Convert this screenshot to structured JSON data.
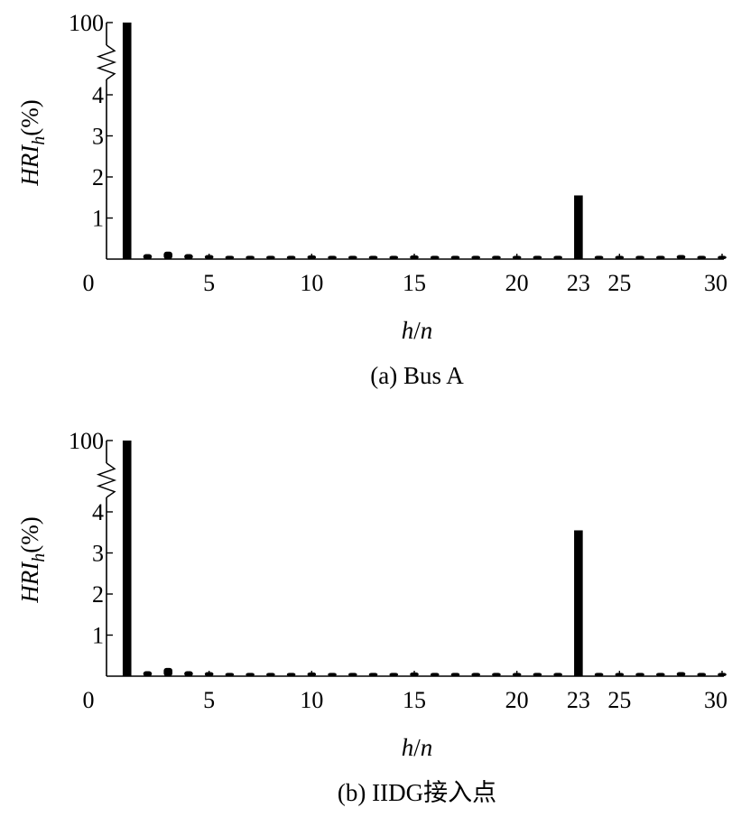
{
  "chart_data": [
    {
      "type": "bar",
      "caption": "(a) Bus A",
      "xlabel": "h/n",
      "ylabel": "HRI_h(%)",
      "xticks": [
        "0",
        "5",
        "10",
        "15",
        "20",
        "23",
        "25",
        "30"
      ],
      "xtick_values": [
        0,
        5,
        10,
        15,
        20,
        23,
        25,
        30
      ],
      "yticks": [
        "1",
        "2",
        "3",
        "4",
        "100"
      ],
      "ytick_values": [
        1,
        2,
        3,
        4,
        100
      ],
      "y_axis_break": {
        "from": 4,
        "to": 100
      },
      "xlim": [
        0,
        30
      ],
      "ylim": [
        0,
        100
      ],
      "categories": [
        1,
        2,
        3,
        4,
        5,
        6,
        7,
        8,
        9,
        10,
        11,
        12,
        13,
        14,
        15,
        16,
        17,
        18,
        19,
        20,
        21,
        22,
        23,
        24,
        25,
        26,
        27,
        28,
        29,
        30
      ],
      "values": [
        100,
        0.12,
        0.18,
        0.12,
        0.1,
        0.08,
        0.08,
        0.08,
        0.08,
        0.09,
        0.08,
        0.08,
        0.08,
        0.08,
        0.09,
        0.08,
        0.08,
        0.08,
        0.08,
        0.08,
        0.08,
        0.08,
        1.55,
        0.08,
        0.08,
        0.08,
        0.08,
        0.1,
        0.08,
        0.08
      ],
      "bar_color": "#000000"
    },
    {
      "type": "bar",
      "caption": "(b) IIDG接入点",
      "xlabel": "h/n",
      "ylabel": "HRI_h(%)",
      "xticks": [
        "0",
        "5",
        "10",
        "15",
        "20",
        "23",
        "25",
        "30"
      ],
      "xtick_values": [
        0,
        5,
        10,
        15,
        20,
        23,
        25,
        30
      ],
      "yticks": [
        "1",
        "2",
        "3",
        "4",
        "100"
      ],
      "ytick_values": [
        1,
        2,
        3,
        4,
        100
      ],
      "y_axis_break": {
        "from": 4,
        "to": 100
      },
      "xlim": [
        0,
        30
      ],
      "ylim": [
        0,
        100
      ],
      "categories": [
        1,
        2,
        3,
        4,
        5,
        6,
        7,
        8,
        9,
        10,
        11,
        12,
        13,
        14,
        15,
        16,
        17,
        18,
        19,
        20,
        21,
        22,
        23,
        24,
        25,
        26,
        27,
        28,
        29,
        30
      ],
      "values": [
        100,
        0.12,
        0.2,
        0.12,
        0.1,
        0.08,
        0.08,
        0.08,
        0.08,
        0.09,
        0.08,
        0.08,
        0.08,
        0.08,
        0.09,
        0.08,
        0.08,
        0.08,
        0.08,
        0.08,
        0.08,
        0.08,
        3.55,
        0.08,
        0.08,
        0.08,
        0.08,
        0.1,
        0.08,
        0.08
      ],
      "bar_color": "#000000"
    }
  ]
}
